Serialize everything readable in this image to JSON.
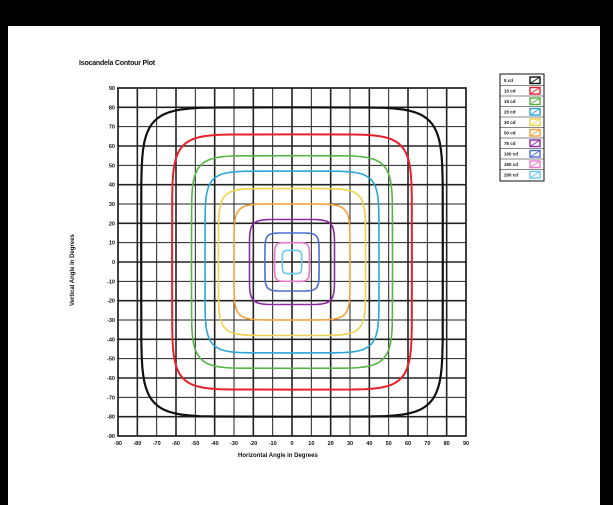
{
  "chart_data": {
    "type": "contour",
    "title": "Isocandela Contour Plot",
    "xlabel": "Horizontal Angle in Degrees",
    "ylabel": "Vertical Angle in Degrees",
    "xlim": [
      -90,
      90
    ],
    "ylim": [
      -90,
      90
    ],
    "grid": true,
    "x_ticks": [
      -90,
      -80,
      -70,
      -60,
      -50,
      -40,
      -30,
      -20,
      -10,
      0,
      10,
      20,
      30,
      40,
      50,
      60,
      70,
      80,
      90
    ],
    "y_ticks": [
      90,
      80,
      70,
      60,
      50,
      40,
      30,
      20,
      10,
      0,
      -10,
      -20,
      -30,
      -40,
      -50,
      -60,
      -70,
      -80,
      -90
    ],
    "legend_position": "right",
    "series": [
      {
        "name": "5 cd",
        "color": "#111111",
        "halfwidth_x": 78,
        "halfwidth_y": 80,
        "square": 0.92
      },
      {
        "name": "10 cd",
        "color": "#e8202a",
        "halfwidth_x": 62,
        "halfwidth_y": 66,
        "square": 0.9
      },
      {
        "name": "15 cd",
        "color": "#55b445",
        "halfwidth_x": 52,
        "halfwidth_y": 55,
        "square": 0.88
      },
      {
        "name": "20 cd",
        "color": "#2aa6d8",
        "halfwidth_x": 45,
        "halfwidth_y": 47,
        "square": 0.86
      },
      {
        "name": "30 cd",
        "color": "#f0d24a",
        "halfwidth_x": 38,
        "halfwidth_y": 38,
        "square": 0.84
      },
      {
        "name": "50 cd",
        "color": "#f3a23c",
        "halfwidth_x": 30,
        "halfwidth_y": 30,
        "square": 0.82
      },
      {
        "name": "75 cd",
        "color": "#8b2aa4",
        "halfwidth_x": 22,
        "halfwidth_y": 22,
        "square": 0.78
      },
      {
        "name": "100 cd",
        "color": "#4b6fd0",
        "halfwidth_x": 14,
        "halfwidth_y": 15,
        "square": 0.72
      },
      {
        "name": "150 cd",
        "color": "#e97ac6",
        "halfwidth_x": 9,
        "halfwidth_y": 10,
        "square": 0.66
      },
      {
        "name": "200 cd",
        "color": "#69c8ef",
        "halfwidth_x": 5,
        "halfwidth_y": 6,
        "square": 0.6
      }
    ]
  }
}
